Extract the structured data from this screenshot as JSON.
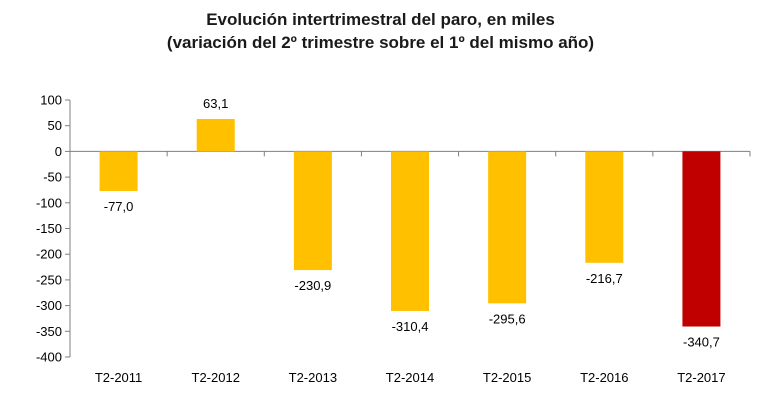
{
  "chart_data": {
    "type": "bar",
    "title": "Evolución intertrimestral del paro, en miles",
    "subtitle": "(variación del 2º trimestre sobre el 1º del mismo año)",
    "categories": [
      "T2-2011",
      "T2-2012",
      "T2-2013",
      "T2-2014",
      "T2-2015",
      "T2-2016",
      "T2-2017"
    ],
    "values": [
      -77.0,
      63.1,
      -230.9,
      -310.4,
      -295.6,
      -216.7,
      -340.7
    ],
    "data_labels": [
      "-77,0",
      "63,1",
      "-230,9",
      "-310,4",
      "-295,6",
      "-216,7",
      "-340,7"
    ],
    "colors": [
      "#FFC000",
      "#FFC000",
      "#FFC000",
      "#FFC000",
      "#FFC000",
      "#FFC000",
      "#C00000"
    ],
    "ylim": [
      -400,
      100
    ],
    "yticks": [
      100,
      50,
      0,
      -50,
      -100,
      -150,
      -200,
      -250,
      -300,
      -350,
      -400
    ],
    "ytick_labels": [
      "100",
      "50",
      "0",
      "-50",
      "-100",
      "-150",
      "-200",
      "-250",
      "-300",
      "-350",
      "-400"
    ],
    "grid": false,
    "xlabel": "",
    "ylabel": ""
  }
}
